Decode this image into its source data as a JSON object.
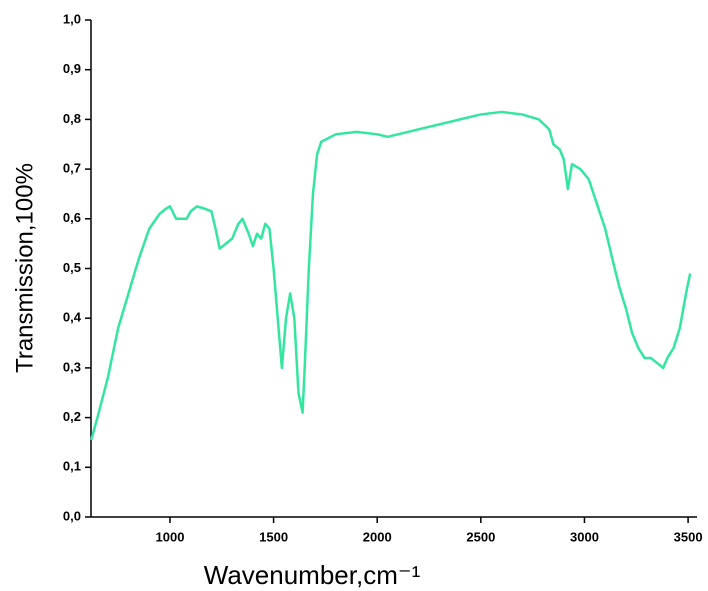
{
  "chart_data": {
    "type": "line",
    "xlabel": "Wavenumber,cm⁻¹",
    "ylabel": "Transmission,100%",
    "x": [
      620,
      650,
      700,
      750,
      800,
      850,
      900,
      950,
      980,
      1000,
      1030,
      1080,
      1100,
      1130,
      1170,
      1200,
      1220,
      1240,
      1270,
      1300,
      1330,
      1350,
      1380,
      1400,
      1420,
      1440,
      1460,
      1480,
      1500,
      1520,
      1540,
      1560,
      1580,
      1600,
      1620,
      1640,
      1650,
      1670,
      1690,
      1710,
      1730,
      1800,
      1900,
      2000,
      2050,
      2100,
      2200,
      2300,
      2400,
      2500,
      2600,
      2700,
      2780,
      2830,
      2850,
      2880,
      2900,
      2920,
      2940,
      2980,
      3020,
      3060,
      3100,
      3140,
      3170,
      3200,
      3230,
      3260,
      3290,
      3320,
      3350,
      3380,
      3400,
      3430,
      3460,
      3490,
      3510
    ],
    "series": [
      {
        "color": "#33e6a0",
        "values": [
          0.155,
          0.2,
          0.28,
          0.38,
          0.45,
          0.52,
          0.58,
          0.61,
          0.62,
          0.625,
          0.6,
          0.6,
          0.615,
          0.625,
          0.62,
          0.615,
          0.58,
          0.54,
          0.55,
          0.56,
          0.59,
          0.6,
          0.57,
          0.545,
          0.57,
          0.56,
          0.59,
          0.58,
          0.5,
          0.4,
          0.3,
          0.4,
          0.45,
          0.4,
          0.25,
          0.21,
          0.3,
          0.5,
          0.65,
          0.73,
          0.755,
          0.77,
          0.775,
          0.77,
          0.765,
          0.77,
          0.78,
          0.79,
          0.8,
          0.81,
          0.815,
          0.81,
          0.8,
          0.78,
          0.75,
          0.74,
          0.72,
          0.66,
          0.71,
          0.7,
          0.68,
          0.63,
          0.58,
          0.51,
          0.46,
          0.42,
          0.37,
          0.34,
          0.32,
          0.32,
          0.31,
          0.3,
          0.32,
          0.34,
          0.38,
          0.45,
          0.49
        ]
      }
    ],
    "xlim": [
      619,
      3543
    ],
    "ylim": [
      0,
      1
    ],
    "xticks": [
      1000,
      1500,
      2000,
      2500,
      3000,
      3500
    ],
    "yticks": [
      {
        "value": 0,
        "label": "0,0"
      },
      {
        "value": 0.1,
        "label": "0,1"
      },
      {
        "value": 0.2,
        "label": "0,2"
      },
      {
        "value": 0.3,
        "label": "0,3"
      },
      {
        "value": 0.4,
        "label": "0,4"
      },
      {
        "value": 0.5,
        "label": "0,5"
      },
      {
        "value": 0.6,
        "label": "0,6"
      },
      {
        "value": 0.7,
        "label": "0,7"
      },
      {
        "value": 0.8,
        "label": "0,8"
      },
      {
        "value": 0.9,
        "label": "0,9"
      },
      {
        "value": 1,
        "label": "1,0"
      }
    ]
  }
}
